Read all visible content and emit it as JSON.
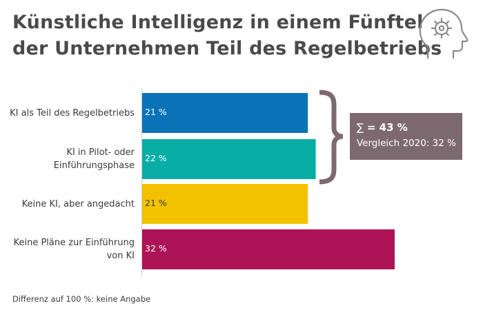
{
  "title_lines": [
    "Künstliche Intelligenz in einem Fünftel",
    "der Unternehmen Teil des Regelbetriebs"
  ],
  "icon": "head-with-gear-icon",
  "colors": {
    "bar_1": "#0a73b8",
    "bar_2": "#08ada6",
    "bar_3": "#f2c200",
    "bar_4": "#ad1457",
    "brace": "#7d6a70",
    "box": "#7d6a70",
    "axis": "#cccccc"
  },
  "chart_data": {
    "type": "bar",
    "orientation": "horizontal",
    "categories": [
      [
        "KI als Teil des Regelbetriebs"
      ],
      [
        "KI in Pilot- oder",
        "Einführungsphase"
      ],
      [
        "Keine KI, aber angedacht"
      ],
      [
        "Keine Pläne zur Einführung",
        "von KI"
      ]
    ],
    "values": [
      21,
      22,
      21,
      32
    ],
    "value_labels": [
      "21 %",
      "22 %",
      "21 %",
      "32 %"
    ],
    "value_label_colors": [
      "#ffffff",
      "#ffffff",
      "#3a3a3a",
      "#ffffff"
    ],
    "xlim": [
      0,
      32
    ],
    "grid": false,
    "annotation": {
      "symbol": "∑",
      "sum_text": "= 43 %",
      "comparison": "Vergleich 2020: 32 %",
      "applies_to": [
        0,
        1
      ]
    }
  },
  "footnote": "Differenz auf 100 %: keine Angabe"
}
